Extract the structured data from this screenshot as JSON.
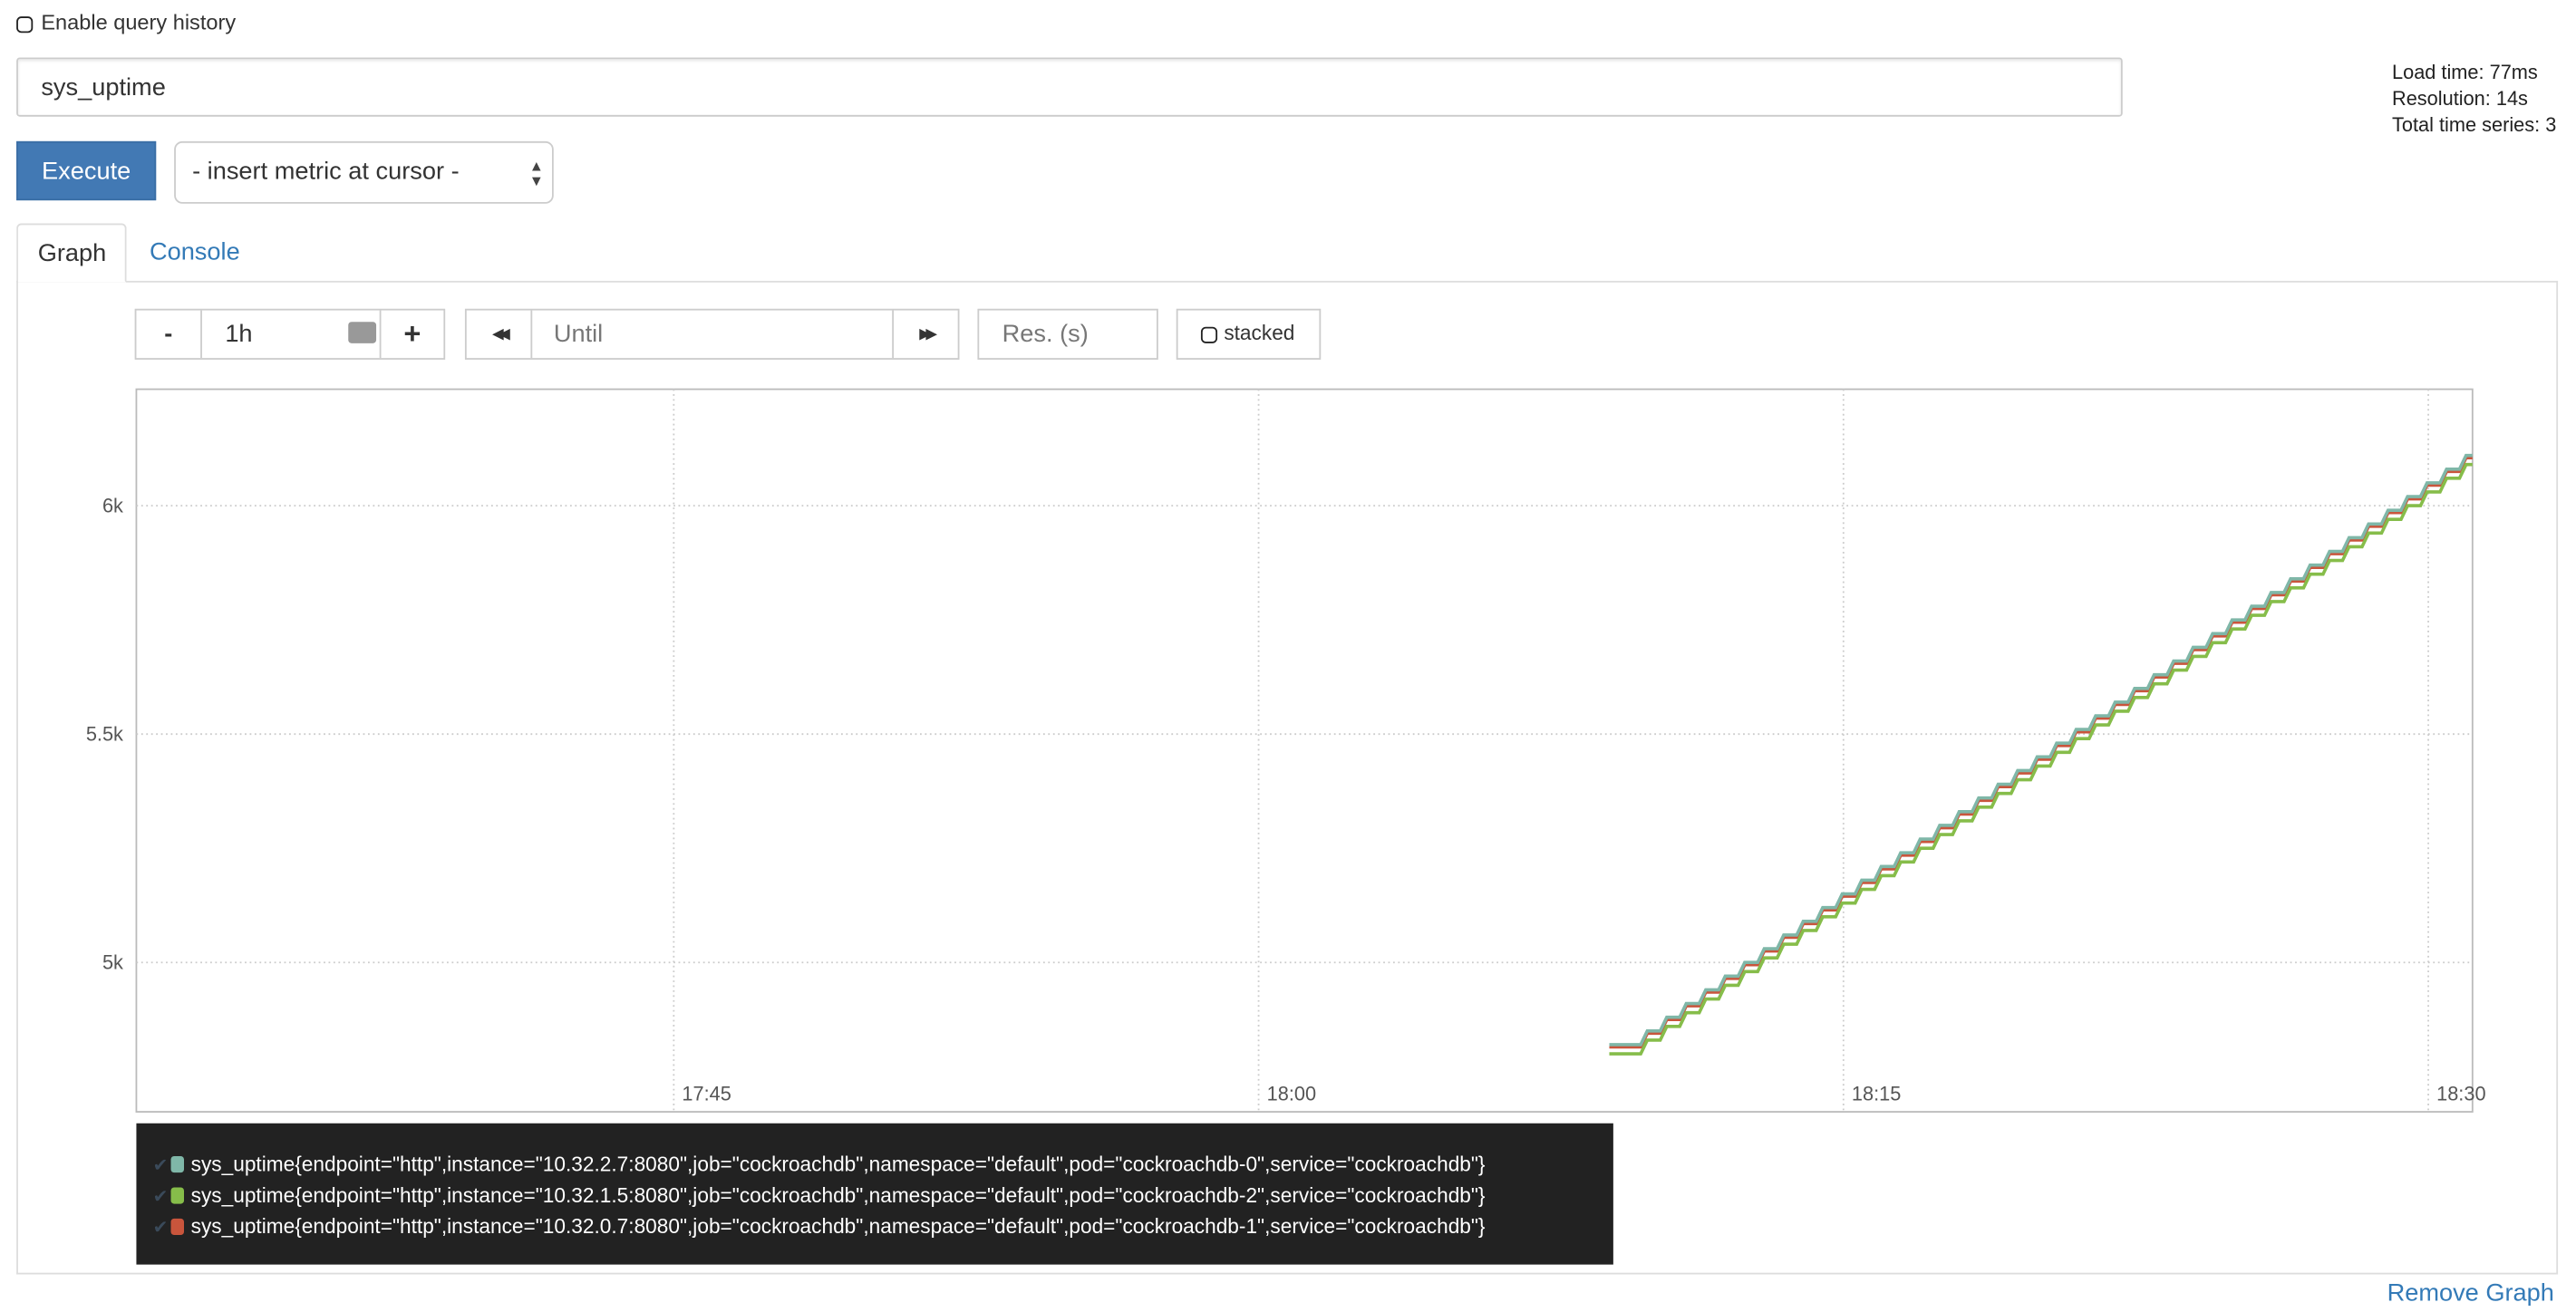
{
  "query_history": {
    "label": "Enable query history",
    "checked": false
  },
  "expression": {
    "value": "sys_uptime"
  },
  "stats": {
    "load_time": "Load time: 77ms",
    "resolution": "Resolution: 14s",
    "total_series": "Total time series: 3"
  },
  "execute_label": "Execute",
  "metric_select": {
    "selected": "- insert metric at cursor -"
  },
  "tabs": [
    {
      "label": "Graph",
      "active": true
    },
    {
      "label": "Console",
      "active": false
    }
  ],
  "controls": {
    "minus": "-",
    "range": "1h",
    "plus": "+",
    "back": "◀◀",
    "until_placeholder": "Until",
    "forward": "▶▶",
    "res_placeholder": "Res. (s)",
    "stacked_label": "stacked",
    "stacked": false
  },
  "chart_data": {
    "type": "line",
    "step": true,
    "xlim": [
      "17:31:13",
      "18:31:08"
    ],
    "ylim": [
      4673,
      6255
    ],
    "x_ticks": [
      "17:45",
      "18:00",
      "18:15",
      "18:30"
    ],
    "y_ticks": [
      {
        "value": 5000,
        "label": "5k"
      },
      {
        "value": 5500,
        "label": "5.5k"
      },
      {
        "value": 6000,
        "label": "6k"
      }
    ],
    "grid": true,
    "x": [
      "18:09:30",
      "18:10:00",
      "18:10:30",
      "18:11:00",
      "18:11:30",
      "18:12:00",
      "18:12:30",
      "18:13:00",
      "18:13:30",
      "18:14:00",
      "18:14:30",
      "18:15:00",
      "18:15:30",
      "18:16:00",
      "18:16:30",
      "18:17:00",
      "18:17:30",
      "18:18:00",
      "18:18:30",
      "18:19:00",
      "18:19:30",
      "18:20:00",
      "18:20:30",
      "18:21:00",
      "18:21:30",
      "18:22:00",
      "18:22:30",
      "18:23:00",
      "18:23:30",
      "18:24:00",
      "18:24:30",
      "18:25:00",
      "18:25:30",
      "18:26:00",
      "18:26:30",
      "18:27:00",
      "18:27:30",
      "18:28:00",
      "18:28:30",
      "18:29:00",
      "18:29:30",
      "18:30:00",
      "18:30:30",
      "18:31:00"
    ],
    "series": [
      {
        "name": "sys_uptime{endpoint=\"http\",instance=\"10.32.0.7:8080\",job=\"cockroachdb\",namespace=\"default\",pod=\"cockroachdb-1\",service=\"cockroachdb\"}",
        "color": "#c9553c",
        "values": [
          4815,
          4845,
          4875,
          4905,
          4935,
          4965,
          4995,
          5025,
          5055,
          5085,
          5115,
          5145,
          5175,
          5205,
          5235,
          5265,
          5295,
          5325,
          5355,
          5385,
          5415,
          5445,
          5475,
          5505,
          5535,
          5565,
          5595,
          5625,
          5655,
          5685,
          5715,
          5745,
          5775,
          5805,
          5835,
          5865,
          5895,
          5925,
          5955,
          5985,
          6015,
          6045,
          6075,
          6105
        ]
      },
      {
        "name": "sys_uptime{endpoint=\"http\",instance=\"10.32.2.7:8080\",job=\"cockroachdb\",namespace=\"default\",pod=\"cockroachdb-0\",service=\"cockroachdb\"}",
        "color": "#7fb7a8",
        "values": [
          4820,
          4850,
          4880,
          4910,
          4940,
          4970,
          5000,
          5030,
          5060,
          5090,
          5120,
          5150,
          5180,
          5210,
          5240,
          5270,
          5300,
          5330,
          5360,
          5390,
          5420,
          5450,
          5480,
          5510,
          5540,
          5570,
          5600,
          5630,
          5660,
          5690,
          5720,
          5750,
          5780,
          5810,
          5840,
          5870,
          5900,
          5930,
          5960,
          5990,
          6020,
          6050,
          6080,
          6110
        ]
      },
      {
        "name": "sys_uptime{endpoint=\"http\",instance=\"10.32.1.5:8080\",job=\"cockroachdb\",namespace=\"default\",pod=\"cockroachdb-2\",service=\"cockroachdb\"}",
        "color": "#86bd4a",
        "values": [
          4800,
          4830,
          4860,
          4890,
          4920,
          4950,
          4980,
          5010,
          5040,
          5070,
          5100,
          5130,
          5160,
          5190,
          5220,
          5250,
          5280,
          5310,
          5340,
          5370,
          5400,
          5430,
          5460,
          5490,
          5520,
          5550,
          5580,
          5610,
          5640,
          5670,
          5700,
          5730,
          5760,
          5790,
          5820,
          5850,
          5880,
          5910,
          5940,
          5970,
          6000,
          6030,
          6060,
          6090
        ]
      }
    ]
  },
  "legend": [
    {
      "label": "sys_uptime{endpoint=\"http\",instance=\"10.32.2.7:8080\",job=\"cockroachdb\",namespace=\"default\",pod=\"cockroachdb-0\",service=\"cockroachdb\"}",
      "color": "#7fb7a8"
    },
    {
      "label": "sys_uptime{endpoint=\"http\",instance=\"10.32.1.5:8080\",job=\"cockroachdb\",namespace=\"default\",pod=\"cockroachdb-2\",service=\"cockroachdb\"}",
      "color": "#86bd4a"
    },
    {
      "label": "sys_uptime{endpoint=\"http\",instance=\"10.32.0.7:8080\",job=\"cockroachdb\",namespace=\"default\",pod=\"cockroachdb-1\",service=\"cockroachdb\"}",
      "color": "#c9553c"
    }
  ],
  "remove_graph": "Remove Graph"
}
